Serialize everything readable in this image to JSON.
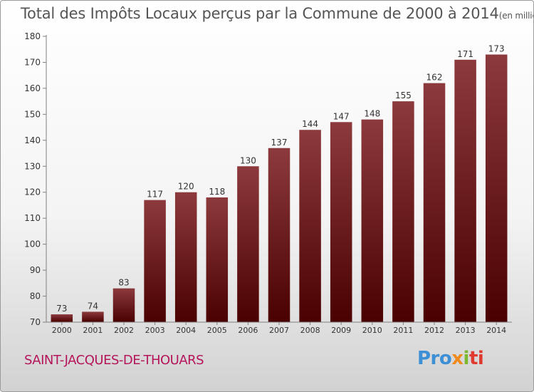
{
  "chart_data": {
    "type": "bar",
    "title": "Total des Impôts Locaux perçus par la Commune de 2000 à 2014",
    "subtitle": "(en milliers d'€)",
    "categories": [
      "2000",
      "2001",
      "2002",
      "2003",
      "2004",
      "2005",
      "2006",
      "2007",
      "2008",
      "2009",
      "2010",
      "2011",
      "2012",
      "2013",
      "2014"
    ],
    "values": [
      73,
      74,
      83,
      117,
      120,
      118,
      130,
      137,
      144,
      147,
      148,
      155,
      162,
      171,
      173
    ],
    "ylim": [
      70,
      180
    ],
    "yticks": [
      70,
      80,
      90,
      100,
      110,
      120,
      130,
      140,
      150,
      160,
      170,
      180
    ],
    "xlabel": "",
    "ylabel": "",
    "grid": false,
    "colors": {
      "bar_top": "#8c3a3d",
      "bar_bottom": "#4a0000",
      "axis": "#808080",
      "tick_text": "#333333"
    }
  },
  "footer": {
    "commune": "SAINT-JACQUES-DE-THOUARS",
    "brand": [
      "Pro",
      "x",
      "i",
      "ti"
    ]
  }
}
